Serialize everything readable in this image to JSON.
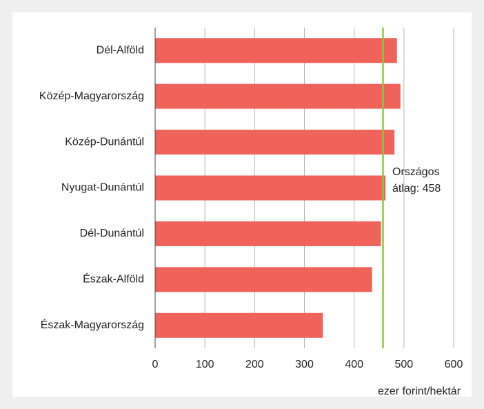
{
  "chart_data": {
    "type": "barh",
    "categories": [
      "Dél-Alföld",
      "Közép-Magyarország",
      "Közép-Dunántúl",
      "Nyugat-Dunántúl",
      "Dél-Dunántúl",
      "Észak-Alföld",
      "Észak-Magyarország"
    ],
    "values": [
      486,
      493,
      481,
      463,
      454,
      436,
      337
    ],
    "color": "#f0635a",
    "xlim": [
      0,
      600
    ],
    "xticks": [
      0,
      100,
      200,
      300,
      400,
      500,
      600
    ],
    "grid": true,
    "x_label": "ezer forint/hektár",
    "reference_line": {
      "value": 458,
      "color": "#8dc63f",
      "label_lines": [
        "Országos",
        "átlag: 458"
      ]
    }
  }
}
